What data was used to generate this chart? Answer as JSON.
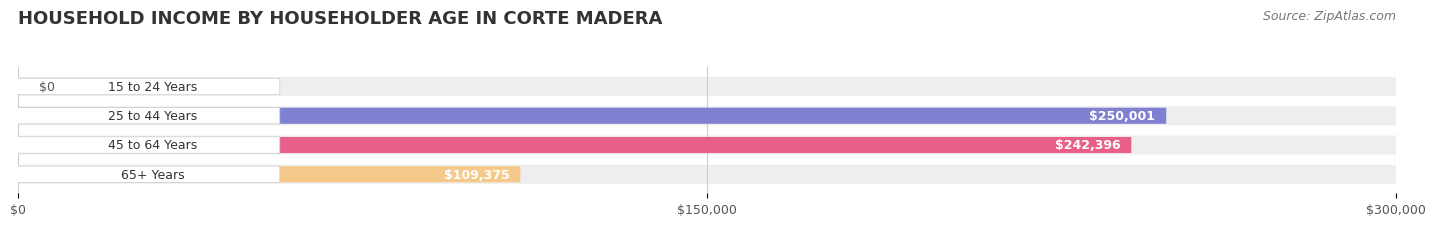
{
  "title": "HOUSEHOLD INCOME BY HOUSEHOLDER AGE IN CORTE MADERA",
  "source": "Source: ZipAtlas.com",
  "categories": [
    "15 to 24 Years",
    "25 to 44 Years",
    "45 to 64 Years",
    "65+ Years"
  ],
  "values": [
    0,
    250001,
    242396,
    109375
  ],
  "bar_colors": [
    "#6ECFCF",
    "#8080D0",
    "#E8608A",
    "#F5C98A"
  ],
  "bar_labels": [
    "$0",
    "$250,001",
    "$242,396",
    "$109,375"
  ],
  "xlim": [
    0,
    300000
  ],
  "xticks": [
    0,
    150000,
    300000
  ],
  "xtick_labels": [
    "$0",
    "$150,000",
    "$300,000"
  ],
  "background_color": "#f5f5f5",
  "bar_bg_color": "#ebebeb",
  "title_fontsize": 13,
  "label_fontsize": 9,
  "tick_fontsize": 9,
  "source_fontsize": 9,
  "bar_height": 0.55,
  "fig_width": 14.06,
  "fig_height": 2.33
}
